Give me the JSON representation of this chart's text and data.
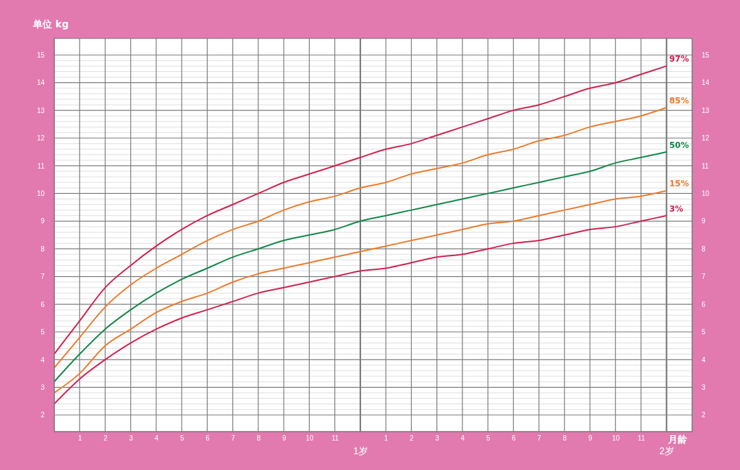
{
  "chart_data": {
    "type": "line",
    "ylabel": "单位 kg",
    "xlabel": "月龄",
    "categories": [
      null,
      "1",
      "2",
      "3",
      "4",
      "5",
      "6",
      "7",
      "8",
      "9",
      "10",
      "11",
      "1岁",
      "1",
      "2",
      "3",
      "4",
      "5",
      "6",
      "7",
      "8",
      "9",
      "10",
      "11",
      "2岁"
    ],
    "ylim": [
      1.4,
      15.6
    ],
    "yticks": [
      2,
      3,
      4,
      5,
      6,
      7,
      8,
      9,
      10,
      11,
      12,
      13,
      14,
      15
    ],
    "y2lim": [
      1.4,
      15.6
    ],
    "y2ticks": [
      2,
      3,
      4,
      5,
      6,
      7,
      8,
      9,
      10,
      11,
      12,
      13,
      14,
      15
    ],
    "grid": true,
    "marker": "none",
    "line_style": "solid",
    "series": [
      {
        "name": "97%",
        "color": "#d0204f",
        "values": [
          4.2,
          5.4,
          6.6,
          7.4,
          8.1,
          8.7,
          9.2,
          9.6,
          10.0,
          10.4,
          10.7,
          11.0,
          11.3,
          11.6,
          11.8,
          12.1,
          12.4,
          12.7,
          13.0,
          13.2,
          13.5,
          13.8,
          14.0,
          14.3,
          14.6
        ]
      },
      {
        "name": "85%",
        "color": "#ec7a2a",
        "values": [
          3.7,
          4.8,
          5.9,
          6.7,
          7.3,
          7.8,
          8.3,
          8.7,
          9.0,
          9.4,
          9.7,
          9.9,
          10.2,
          10.4,
          10.7,
          10.9,
          11.1,
          11.4,
          11.6,
          11.9,
          12.1,
          12.4,
          12.6,
          12.8,
          13.1
        ]
      },
      {
        "name": "50%",
        "color": "#12874a",
        "values": [
          3.2,
          4.2,
          5.1,
          5.8,
          6.4,
          6.9,
          7.3,
          7.7,
          8.0,
          8.3,
          8.5,
          8.7,
          9.0,
          9.2,
          9.4,
          9.6,
          9.8,
          10.0,
          10.2,
          10.4,
          10.6,
          10.8,
          11.1,
          11.3,
          11.5
        ]
      },
      {
        "name": "15%",
        "color": "#ec7a2a",
        "values": [
          2.8,
          3.5,
          4.5,
          5.1,
          5.7,
          6.1,
          6.4,
          6.8,
          7.1,
          7.3,
          7.5,
          7.7,
          7.9,
          8.1,
          8.3,
          8.5,
          8.7,
          8.9,
          9.0,
          9.2,
          9.4,
          9.6,
          9.8,
          9.9,
          10.1
        ]
      },
      {
        "name": "3%",
        "color": "#d0204f",
        "values": [
          2.4,
          3.3,
          4.0,
          4.6,
          5.1,
          5.5,
          5.8,
          6.1,
          6.4,
          6.6,
          6.8,
          7.0,
          7.2,
          7.3,
          7.5,
          7.7,
          7.8,
          8.0,
          8.2,
          8.3,
          8.5,
          8.7,
          8.8,
          9.0,
          9.2
        ]
      }
    ]
  }
}
